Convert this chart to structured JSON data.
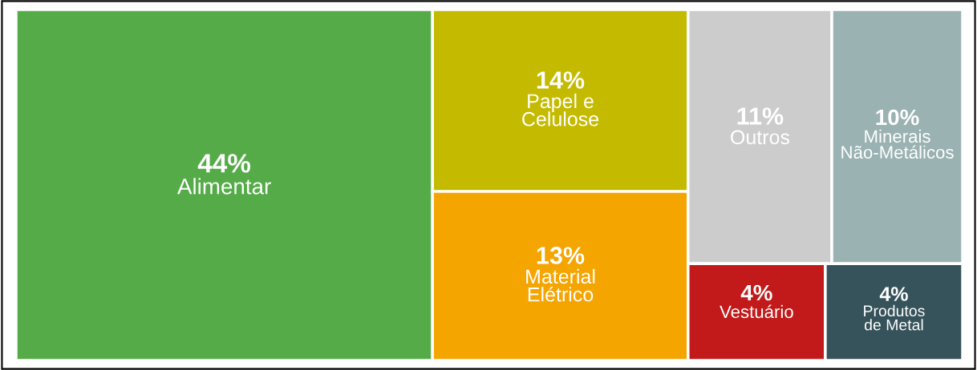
{
  "chart_data": {
    "type": "other",
    "categories": [
      "Alimentar",
      "Papel e\nCelulose",
      "Material\nElétrico",
      "Outros",
      "Minerais\nNão-Metálicos",
      "Vestuário",
      "Produtos\nde Metal"
    ],
    "values": [
      44,
      14,
      13,
      11,
      10,
      4,
      4
    ],
    "value_labels": [
      "44%",
      "14%",
      "13%",
      "11%",
      "10%",
      "4%",
      "4%"
    ],
    "colors": [
      "#55ab48",
      "#c4bb00",
      "#f5a500",
      "#cccccc",
      "#9ab2b2",
      "#c21a1a",
      "#36535b"
    ]
  }
}
